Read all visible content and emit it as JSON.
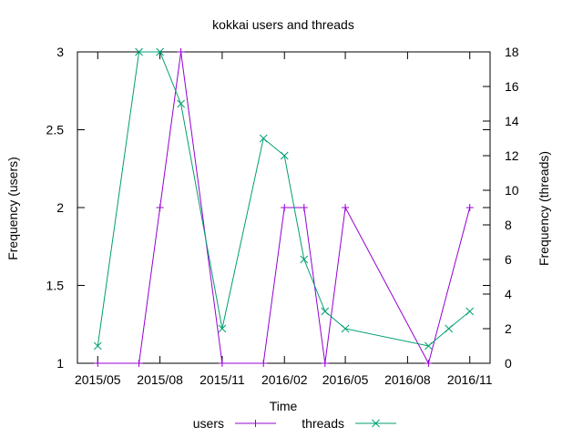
{
  "chart_data": {
    "type": "line",
    "title": "kokkai users and threads",
    "xlabel": "Time",
    "ylabel": "Frequency (users)",
    "y2label": "Frequency (threads)",
    "xlim": [
      "2015-04-01",
      "2016-12-01"
    ],
    "ylim": [
      1,
      3
    ],
    "y2lim": [
      0,
      18
    ],
    "x_ticks": [
      "2015/05",
      "2015/08",
      "2015/11",
      "2016/02",
      "2016/05",
      "2016/08",
      "2016/11"
    ],
    "y_ticks": [
      "1",
      "1.5",
      "2",
      "2.5",
      "3"
    ],
    "y2_ticks": [
      "0",
      "2",
      "4",
      "6",
      "8",
      "10",
      "12",
      "14",
      "16",
      "18"
    ],
    "legend_position": "bottom",
    "series": [
      {
        "name": "users",
        "axis": "left",
        "color": "#9400d3",
        "marker": "plus",
        "points": [
          {
            "x": "2015-05-01",
            "y": 1
          },
          {
            "x": "2015-07-01",
            "y": 1
          },
          {
            "x": "2015-08-01",
            "y": 2
          },
          {
            "x": "2015-09-01",
            "y": 3
          },
          {
            "x": "2015-11-01",
            "y": 1
          },
          {
            "x": "2016-01-01",
            "y": 1
          },
          {
            "x": "2016-02-01",
            "y": 2
          },
          {
            "x": "2016-03-01",
            "y": 2
          },
          {
            "x": "2016-04-01",
            "y": 1
          },
          {
            "x": "2016-05-01",
            "y": 2
          },
          {
            "x": "2016-09-01",
            "y": 1
          },
          {
            "x": "2016-11-01",
            "y": 2
          }
        ]
      },
      {
        "name": "threads",
        "axis": "right",
        "color": "#009e73",
        "marker": "cross",
        "points": [
          {
            "x": "2015-05-01",
            "y": 1
          },
          {
            "x": "2015-07-01",
            "y": 18
          },
          {
            "x": "2015-08-01",
            "y": 18
          },
          {
            "x": "2015-09-01",
            "y": 15
          },
          {
            "x": "2015-11-01",
            "y": 2
          },
          {
            "x": "2016-01-01",
            "y": 13
          },
          {
            "x": "2016-02-01",
            "y": 12
          },
          {
            "x": "2016-03-01",
            "y": 6
          },
          {
            "x": "2016-04-01",
            "y": 3
          },
          {
            "x": "2016-05-01",
            "y": 2
          },
          {
            "x": "2016-09-01",
            "y": 1
          },
          {
            "x": "2016-10-01",
            "y": 2
          },
          {
            "x": "2016-11-01",
            "y": 3
          }
        ]
      }
    ]
  }
}
